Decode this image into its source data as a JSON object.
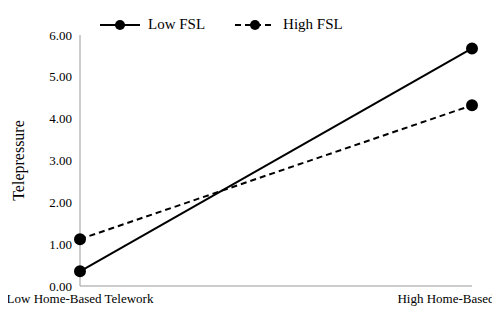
{
  "chart_data": {
    "type": "line",
    "y_label": "Telepressure",
    "categories": [
      "Low Home-Based Telework",
      "High Home-Based Telework"
    ],
    "series": [
      {
        "name": "Low FSL",
        "color": "#000000",
        "marker": "circle",
        "line_style": "solid",
        "values": [
          0.35,
          5.68
        ]
      },
      {
        "name": "High FSL",
        "color": "#000000",
        "marker": "circle",
        "line_style": "dashed",
        "values": [
          1.12,
          4.32
        ]
      }
    ],
    "ylim": [
      0,
      6
    ],
    "yticks": [
      {
        "value": 0,
        "label": "0.00"
      },
      {
        "value": 1,
        "label": "1.00"
      },
      {
        "value": 2,
        "label": "2.00"
      },
      {
        "value": 3,
        "label": "3.00"
      },
      {
        "value": 4,
        "label": "4.00"
      },
      {
        "value": 5,
        "label": "5.00"
      },
      {
        "value": 6,
        "label": "6.00"
      }
    ],
    "grid": false,
    "legend": "upper left"
  }
}
